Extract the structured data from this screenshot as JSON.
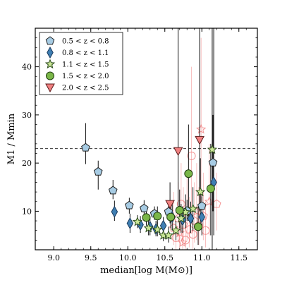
{
  "chart_data": {
    "type": "scatter",
    "title": "",
    "xlabel": "median[log M(M⊙)]",
    "ylabel": "M1 / Mmin",
    "xlim": [
      8.75,
      11.75
    ],
    "ylim": [
      2,
      48
    ],
    "xticks": [
      9.0,
      9.5,
      10.0,
      10.5,
      11.0,
      11.5
    ],
    "xtick_labels": [
      "9.0",
      "9.5",
      "10.0",
      "10.5",
      "11.0",
      "11.5"
    ],
    "yticks": [
      10,
      20,
      30,
      40
    ],
    "ytick_labels": [
      "10",
      "20",
      "30",
      "40"
    ],
    "grid": false,
    "legend_position": "top-left",
    "reference_line": {
      "y": 23,
      "style": "dashed",
      "color": "#333333"
    },
    "series": [
      {
        "name": "0.5 < z < 0.8",
        "marker": "pentagon",
        "color": "#a6cbe3",
        "edge": "#222222",
        "points": [
          {
            "x": 9.43,
            "y": 23.2,
            "lo": 19.8,
            "hi": 28.3
          },
          {
            "x": 9.6,
            "y": 18.2,
            "lo": 14.5,
            "hi": 20.5
          },
          {
            "x": 9.8,
            "y": 14.3,
            "lo": 12.5,
            "hi": 16.5
          },
          {
            "x": 10.02,
            "y": 11.2,
            "lo": 9.5,
            "hi": 12.8
          },
          {
            "x": 10.22,
            "y": 10.6,
            "lo": 9.0,
            "hi": 12.3
          },
          {
            "x": 10.36,
            "y": 9.5,
            "lo": 8.2,
            "hi": 11.0
          },
          {
            "x": 10.55,
            "y": 9.9,
            "lo": 8.5,
            "hi": 11.4
          },
          {
            "x": 10.8,
            "y": 10.1,
            "lo": 8.0,
            "hi": 12.4
          },
          {
            "x": 11.0,
            "y": 11.1,
            "lo": 8.8,
            "hi": 13.5
          },
          {
            "x": 11.15,
            "y": 20.1,
            "lo": 10.0,
            "hi": 30.0
          }
        ]
      },
      {
        "name": "0.8 < z < 1.1",
        "marker": "diamond",
        "color": "#3f7fb3",
        "edge": "#1b3a5c",
        "points": [
          {
            "x": 9.82,
            "y": 9.9,
            "lo": 8.0,
            "hi": 12.2
          },
          {
            "x": 10.03,
            "y": 7.5,
            "lo": 5.5,
            "hi": 9.5
          },
          {
            "x": 10.17,
            "y": 7.2,
            "lo": 5.5,
            "hi": 9.0
          },
          {
            "x": 10.3,
            "y": 6.8,
            "lo": 5.0,
            "hi": 8.6
          },
          {
            "x": 10.38,
            "y": 6.3,
            "lo": 4.8,
            "hi": 8.0
          },
          {
            "x": 10.48,
            "y": 7.0,
            "lo": 5.2,
            "hi": 8.8
          },
          {
            "x": 10.6,
            "y": 8.8,
            "lo": 6.0,
            "hi": 12.0
          },
          {
            "x": 10.74,
            "y": 8.2,
            "lo": 5.5,
            "hi": 11.0
          },
          {
            "x": 10.85,
            "y": 8.5,
            "lo": 5.5,
            "hi": 12.0
          },
          {
            "x": 11.0,
            "y": 8.8,
            "lo": 5.0,
            "hi": 13.0
          },
          {
            "x": 11.16,
            "y": 16.0,
            "lo": 5.0,
            "hi": 48.0
          }
        ]
      },
      {
        "name": "1.1 < z < 1.5",
        "marker": "star",
        "color": "#c9e696",
        "edge": "#2a4a1a",
        "points": [
          {
            "x": 10.13,
            "y": 7.8,
            "lo": 6.5,
            "hi": 9.2
          },
          {
            "x": 10.28,
            "y": 6.5,
            "lo": 5.0,
            "hi": 8.0
          },
          {
            "x": 10.4,
            "y": 6.2,
            "lo": 4.8,
            "hi": 7.8
          },
          {
            "x": 10.48,
            "y": 5.0,
            "lo": 3.8,
            "hi": 6.3
          },
          {
            "x": 10.55,
            "y": 5.0,
            "lo": 3.5,
            "hi": 6.8
          },
          {
            "x": 10.65,
            "y": 6.0,
            "lo": 4.0,
            "hi": 8.0
          },
          {
            "x": 10.72,
            "y": 8.5,
            "lo": 5.5,
            "hi": 11.5
          },
          {
            "x": 10.78,
            "y": 9.8,
            "lo": 6.5,
            "hi": 13.5
          },
          {
            "x": 10.88,
            "y": 10.5,
            "lo": 6.0,
            "hi": 15.0
          },
          {
            "x": 10.98,
            "y": 14.0,
            "lo": 7.0,
            "hi": 21.0
          },
          {
            "x": 11.14,
            "y": 22.8,
            "lo": 2.0,
            "hi": 48.0
          }
        ]
      },
      {
        "name": "1.5 < z < 2.0",
        "marker": "circle",
        "color": "#7ab648",
        "edge": "#1f3d0f",
        "points": [
          {
            "x": 10.25,
            "y": 8.7,
            "lo": 7.0,
            "hi": 10.5
          },
          {
            "x": 10.4,
            "y": 9.0,
            "lo": 7.2,
            "hi": 11.0
          },
          {
            "x": 10.58,
            "y": 8.8,
            "lo": 6.5,
            "hi": 11.5
          },
          {
            "x": 10.7,
            "y": 10.2,
            "lo": 6.5,
            "hi": 14.5
          },
          {
            "x": 10.82,
            "y": 17.8,
            "lo": 8.0,
            "hi": 28.0
          },
          {
            "x": 10.95,
            "y": 6.8,
            "lo": 3.0,
            "hi": 11.0
          },
          {
            "x": 11.12,
            "y": 14.7,
            "lo": 5.0,
            "hi": 24.0
          }
        ]
      },
      {
        "name": "2.0 < z < 2.5",
        "marker": "triangle-down",
        "color": "#f08080",
        "edge": "#5a1a1a",
        "points": [
          {
            "x": 10.57,
            "y": 11.5,
            "lo": 7.5,
            "hi": 16.0
          },
          {
            "x": 10.68,
            "y": 22.5,
            "lo": 10.0,
            "hi": 48.0
          },
          {
            "x": 10.97,
            "y": 24.8,
            "lo": 10.0,
            "hi": 48.0
          }
        ]
      }
    ]
  },
  "faint_data": {
    "name": "2.0 < z < 2.5 (individual)",
    "color": "#f07070",
    "points": [
      {
        "x": 10.62,
        "y": 6.5,
        "lo": 3.0,
        "hi": 14.0,
        "m": "pentagon"
      },
      {
        "x": 10.65,
        "y": 4.5,
        "lo": 2.0,
        "hi": 10.0,
        "m": "circle"
      },
      {
        "x": 10.68,
        "y": 8.5,
        "lo": 4.0,
        "hi": 16.0,
        "m": "pentagon"
      },
      {
        "x": 10.7,
        "y": 5.5,
        "lo": 2.0,
        "hi": 12.0,
        "m": "star"
      },
      {
        "x": 10.72,
        "y": 11.5,
        "lo": 5.0,
        "hi": 20.0,
        "m": "circle"
      },
      {
        "x": 10.75,
        "y": 7.2,
        "lo": 3.0,
        "hi": 15.0,
        "m": "pentagon"
      },
      {
        "x": 10.78,
        "y": 4.0,
        "lo": 2.0,
        "hi": 9.0,
        "m": "circle"
      },
      {
        "x": 10.8,
        "y": 9.8,
        "lo": 4.0,
        "hi": 18.0,
        "m": "star"
      },
      {
        "x": 10.83,
        "y": 6.2,
        "lo": 2.5,
        "hi": 13.0,
        "m": "pentagon"
      },
      {
        "x": 10.86,
        "y": 21.5,
        "lo": 8.0,
        "hi": 40.0,
        "m": "circle"
      },
      {
        "x": 10.88,
        "y": 5.2,
        "lo": 2.0,
        "hi": 11.0,
        "m": "circle"
      },
      {
        "x": 10.9,
        "y": 8.0,
        "lo": 3.5,
        "hi": 16.0,
        "m": "pentagon"
      },
      {
        "x": 10.93,
        "y": 10.0,
        "lo": 4.0,
        "hi": 20.0,
        "m": "star"
      },
      {
        "x": 10.96,
        "y": 7.0,
        "lo": 3.0,
        "hi": 15.0,
        "m": "circle"
      },
      {
        "x": 10.99,
        "y": 27.0,
        "lo": 12.0,
        "hi": 46.0,
        "m": "star"
      },
      {
        "x": 11.02,
        "y": 9.0,
        "lo": 4.0,
        "hi": 18.0,
        "m": "pentagon"
      },
      {
        "x": 11.05,
        "y": 6.0,
        "lo": 2.5,
        "hi": 12.0,
        "m": "circle"
      },
      {
        "x": 11.1,
        "y": 12.0,
        "lo": 5.0,
        "hi": 24.0,
        "m": "star"
      },
      {
        "x": 11.2,
        "y": 11.5,
        "lo": 6.0,
        "hi": 18.0,
        "m": "pentagon"
      },
      {
        "x": 10.74,
        "y": 3.5,
        "lo": 2.0,
        "hi": 7.0,
        "m": "star"
      }
    ]
  }
}
